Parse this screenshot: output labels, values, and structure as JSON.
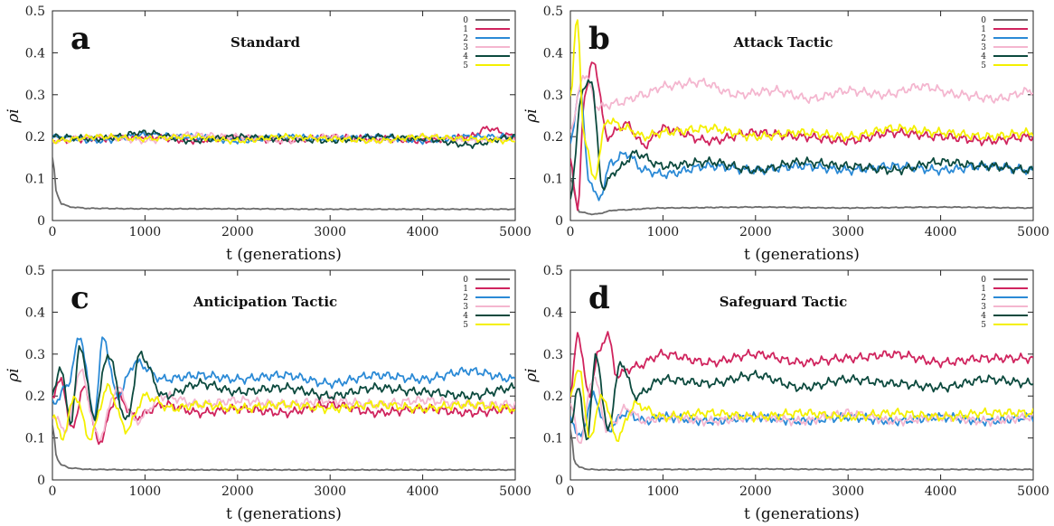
{
  "colors": {
    "0": "#6b6b6b",
    "1": "#d0245e",
    "2": "#2b8ad6",
    "3": "#f4b6cf",
    "4": "#0c4a3e",
    "5": "#f4f000"
  },
  "chart_data": [
    {
      "type": "line",
      "panel_letter": "a",
      "title": "Standard",
      "xlabel": "t (generations)",
      "ylabel": "ρi",
      "xlim": [
        0,
        5000
      ],
      "ylim": [
        0,
        0.5
      ],
      "xticks": [
        "0",
        "1000",
        "2000",
        "3000",
        "4000",
        "5000"
      ],
      "yticks": [
        "0",
        "0.1",
        "0.2",
        "0.3",
        "0.4",
        "0.5"
      ],
      "legend": "top-right",
      "series": [
        {
          "name": "0",
          "x": [
            0,
            50,
            100,
            200,
            400,
            1000,
            2000,
            3000,
            4000,
            5000
          ],
          "y": [
            0.15,
            0.06,
            0.04,
            0.032,
            0.029,
            0.028,
            0.028,
            0.027,
            0.027,
            0.027
          ]
        },
        {
          "name": "1",
          "x": [
            0,
            500,
            1000,
            1500,
            2000,
            2500,
            3000,
            3500,
            4000,
            4500,
            4700,
            5000
          ],
          "y": [
            0.19,
            0.195,
            0.2,
            0.19,
            0.198,
            0.19,
            0.2,
            0.195,
            0.19,
            0.2,
            0.22,
            0.2
          ]
        },
        {
          "name": "2",
          "x": [
            0,
            500,
            1000,
            1500,
            2000,
            2500,
            3000,
            3500,
            4000,
            4500,
            5000
          ],
          "y": [
            0.2,
            0.19,
            0.205,
            0.2,
            0.19,
            0.2,
            0.195,
            0.2,
            0.19,
            0.2,
            0.2
          ]
        },
        {
          "name": "3",
          "x": [
            0,
            500,
            1000,
            1500,
            2000,
            2500,
            3000,
            3500,
            4000,
            4500,
            5000
          ],
          "y": [
            0.19,
            0.2,
            0.19,
            0.205,
            0.2,
            0.19,
            0.2,
            0.19,
            0.2,
            0.19,
            0.195
          ]
        },
        {
          "name": "4",
          "x": [
            0,
            500,
            1000,
            1500,
            2000,
            2500,
            3000,
            3500,
            4000,
            4500,
            5000
          ],
          "y": [
            0.2,
            0.195,
            0.21,
            0.19,
            0.2,
            0.195,
            0.19,
            0.2,
            0.195,
            0.18,
            0.2
          ]
        },
        {
          "name": "5",
          "x": [
            0,
            500,
            1000,
            1500,
            2000,
            2500,
            3000,
            3500,
            4000,
            4500,
            5000
          ],
          "y": [
            0.19,
            0.2,
            0.195,
            0.2,
            0.19,
            0.2,
            0.195,
            0.19,
            0.2,
            0.195,
            0.19
          ]
        }
      ]
    },
    {
      "type": "line",
      "panel_letter": "b",
      "title": "Attack Tactic",
      "xlabel": "t (generations)",
      "ylabel": "ρi",
      "xlim": [
        0,
        5000
      ],
      "ylim": [
        0,
        0.5
      ],
      "xticks": [
        "0",
        "1000",
        "2000",
        "3000",
        "4000",
        "5000"
      ],
      "yticks": [
        "0",
        "0.1",
        "0.2",
        "0.3",
        "0.4",
        "0.5"
      ],
      "legend": "top-right",
      "series": [
        {
          "name": "0",
          "x": [
            0,
            100,
            250,
            500,
            1000,
            2000,
            3000,
            4000,
            5000
          ],
          "y": [
            0.1,
            0.02,
            0.015,
            0.025,
            0.03,
            0.032,
            0.03,
            0.032,
            0.03
          ]
        },
        {
          "name": "1",
          "x": [
            0,
            80,
            150,
            250,
            400,
            600,
            800,
            1000,
            1500,
            2000,
            2500,
            3000,
            3500,
            4000,
            4500,
            5000
          ],
          "y": [
            0.15,
            0.02,
            0.3,
            0.38,
            0.2,
            0.23,
            0.18,
            0.22,
            0.19,
            0.21,
            0.2,
            0.19,
            0.21,
            0.2,
            0.19,
            0.2
          ]
        },
        {
          "name": "2",
          "x": [
            0,
            100,
            200,
            300,
            450,
            600,
            800,
            1000,
            1500,
            2000,
            2500,
            3000,
            3500,
            4000,
            4500,
            5000
          ],
          "y": [
            0.18,
            0.32,
            0.1,
            0.05,
            0.14,
            0.16,
            0.12,
            0.11,
            0.13,
            0.12,
            0.13,
            0.12,
            0.13,
            0.12,
            0.13,
            0.12
          ]
        },
        {
          "name": "3",
          "x": [
            0,
            150,
            300,
            500,
            800,
            1000,
            1400,
            1800,
            2200,
            2600,
            3000,
            3400,
            3800,
            4200,
            4600,
            5000
          ],
          "y": [
            0.22,
            0.35,
            0.27,
            0.28,
            0.3,
            0.32,
            0.33,
            0.3,
            0.31,
            0.29,
            0.31,
            0.3,
            0.32,
            0.3,
            0.29,
            0.31
          ]
        },
        {
          "name": "4",
          "x": [
            0,
            120,
            220,
            350,
            500,
            700,
            1000,
            1500,
            2000,
            2500,
            3000,
            3500,
            4000,
            4500,
            5000
          ],
          "y": [
            0.05,
            0.3,
            0.34,
            0.08,
            0.12,
            0.16,
            0.13,
            0.14,
            0.12,
            0.14,
            0.13,
            0.12,
            0.14,
            0.13,
            0.12
          ]
        },
        {
          "name": "5",
          "x": [
            0,
            70,
            150,
            250,
            400,
            600,
            800,
            1000,
            1500,
            2000,
            2500,
            3000,
            3500,
            4000,
            4500,
            5000
          ],
          "y": [
            0.3,
            0.48,
            0.2,
            0.1,
            0.24,
            0.22,
            0.2,
            0.21,
            0.22,
            0.2,
            0.21,
            0.2,
            0.22,
            0.21,
            0.2,
            0.21
          ]
        }
      ]
    },
    {
      "type": "line",
      "panel_letter": "c",
      "title": "Anticipation Tactic",
      "xlabel": "t (generations)",
      "ylabel": "ρi",
      "xlim": [
        0,
        5000
      ],
      "ylim": [
        0,
        0.5
      ],
      "xticks": [
        "0",
        "1000",
        "2000",
        "3000",
        "4000",
        "5000"
      ],
      "yticks": [
        "0",
        "0.1",
        "0.2",
        "0.3",
        "0.4",
        "0.5"
      ],
      "legend": "top-right",
      "series": [
        {
          "name": "0",
          "x": [
            0,
            50,
            100,
            200,
            400,
            1000,
            2000,
            3000,
            4000,
            5000
          ],
          "y": [
            0.13,
            0.05,
            0.035,
            0.028,
            0.025,
            0.024,
            0.024,
            0.024,
            0.024,
            0.024
          ]
        },
        {
          "name": "1",
          "x": [
            0,
            100,
            200,
            350,
            500,
            700,
            900,
            1200,
            1600,
            2000,
            2500,
            3000,
            3500,
            4000,
            4500,
            5000
          ],
          "y": [
            0.2,
            0.24,
            0.12,
            0.22,
            0.09,
            0.2,
            0.15,
            0.18,
            0.16,
            0.17,
            0.16,
            0.18,
            0.16,
            0.17,
            0.16,
            0.17
          ]
        },
        {
          "name": "2",
          "x": [
            0,
            150,
            300,
            450,
            550,
            700,
            900,
            1200,
            1600,
            2000,
            2500,
            3000,
            3500,
            4000,
            4500,
            5000
          ],
          "y": [
            0.18,
            0.22,
            0.34,
            0.15,
            0.34,
            0.2,
            0.28,
            0.24,
            0.25,
            0.24,
            0.25,
            0.23,
            0.25,
            0.24,
            0.26,
            0.24
          ]
        },
        {
          "name": "3",
          "x": [
            0,
            150,
            300,
            500,
            700,
            900,
            1200,
            1600,
            2000,
            2500,
            3000,
            3500,
            4000,
            4500,
            5000
          ],
          "y": [
            0.15,
            0.12,
            0.26,
            0.1,
            0.22,
            0.14,
            0.2,
            0.18,
            0.19,
            0.18,
            0.19,
            0.18,
            0.19,
            0.18,
            0.18
          ]
        },
        {
          "name": "4",
          "x": [
            0,
            80,
            200,
            300,
            450,
            600,
            800,
            950,
            1200,
            1600,
            2000,
            2500,
            3000,
            3500,
            4000,
            4500,
            5000
          ],
          "y": [
            0.2,
            0.27,
            0.14,
            0.32,
            0.15,
            0.3,
            0.14,
            0.3,
            0.2,
            0.23,
            0.21,
            0.22,
            0.2,
            0.22,
            0.21,
            0.2,
            0.22
          ]
        },
        {
          "name": "5",
          "x": [
            0,
            100,
            250,
            400,
            600,
            800,
            1000,
            1300,
            1600,
            2000,
            2500,
            3000,
            3500,
            4000,
            4500,
            5000
          ],
          "y": [
            0.16,
            0.1,
            0.2,
            0.1,
            0.22,
            0.12,
            0.2,
            0.17,
            0.18,
            0.17,
            0.18,
            0.17,
            0.18,
            0.17,
            0.18,
            0.17
          ]
        }
      ]
    },
    {
      "type": "line",
      "panel_letter": "d",
      "title": "Safeguard Tactic",
      "xlabel": "t (generations)",
      "ylabel": "ρi",
      "xlim": [
        0,
        5000
      ],
      "ylim": [
        0,
        0.5
      ],
      "xticks": [
        "0",
        "1000",
        "2000",
        "3000",
        "4000",
        "5000"
      ],
      "yticks": [
        "0",
        "0.1",
        "0.2",
        "0.3",
        "0.4",
        "0.5"
      ],
      "legend": "top-right",
      "series": [
        {
          "name": "0",
          "x": [
            0,
            50,
            100,
            200,
            400,
            1000,
            2000,
            3000,
            4000,
            5000
          ],
          "y": [
            0.12,
            0.04,
            0.03,
            0.025,
            0.024,
            0.025,
            0.026,
            0.025,
            0.025,
            0.025
          ]
        },
        {
          "name": "1",
          "x": [
            0,
            80,
            200,
            300,
            400,
            500,
            700,
            1000,
            1500,
            2000,
            2500,
            3000,
            3500,
            4000,
            4500,
            5000
          ],
          "y": [
            0.2,
            0.35,
            0.2,
            0.3,
            0.35,
            0.25,
            0.27,
            0.3,
            0.28,
            0.3,
            0.28,
            0.29,
            0.3,
            0.28,
            0.29,
            0.29
          ]
        },
        {
          "name": "2",
          "x": [
            0,
            100,
            250,
            400,
            600,
            800,
            1000,
            1500,
            2000,
            2500,
            3000,
            3500,
            4000,
            4500,
            5000
          ],
          "y": [
            0.15,
            0.1,
            0.2,
            0.12,
            0.16,
            0.14,
            0.15,
            0.14,
            0.15,
            0.14,
            0.15,
            0.14,
            0.15,
            0.14,
            0.15
          ]
        },
        {
          "name": "3",
          "x": [
            0,
            100,
            250,
            400,
            600,
            800,
            1000,
            1500,
            2000,
            2500,
            3000,
            3500,
            4000,
            4500,
            5000
          ],
          "y": [
            0.18,
            0.09,
            0.25,
            0.12,
            0.17,
            0.14,
            0.15,
            0.14,
            0.15,
            0.14,
            0.16,
            0.14,
            0.15,
            0.14,
            0.15
          ]
        },
        {
          "name": "4",
          "x": [
            0,
            80,
            180,
            280,
            400,
            550,
            700,
            1000,
            1500,
            2000,
            2500,
            3000,
            3500,
            4000,
            4500,
            5000
          ],
          "y": [
            0.13,
            0.22,
            0.1,
            0.3,
            0.12,
            0.28,
            0.2,
            0.24,
            0.23,
            0.25,
            0.22,
            0.24,
            0.23,
            0.22,
            0.24,
            0.23
          ]
        },
        {
          "name": "5",
          "x": [
            0,
            100,
            200,
            350,
            500,
            700,
            1000,
            1500,
            2000,
            2500,
            3000,
            3500,
            4000,
            4500,
            5000
          ],
          "y": [
            0.2,
            0.27,
            0.1,
            0.2,
            0.1,
            0.18,
            0.15,
            0.16,
            0.15,
            0.16,
            0.15,
            0.16,
            0.15,
            0.16,
            0.16
          ]
        }
      ]
    }
  ]
}
